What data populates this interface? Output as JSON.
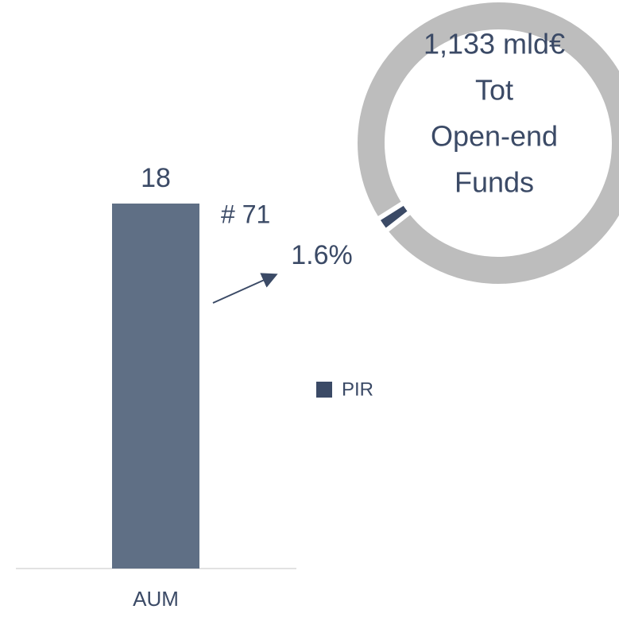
{
  "chart_data": [
    {
      "type": "bar",
      "categories": [
        "AUM"
      ],
      "series": [
        {
          "name": "PIR",
          "color": "#5f6f85",
          "legend_color": "#3b4a66",
          "values": [
            18
          ]
        }
      ],
      "annotations": [
        "# 71"
      ]
    },
    {
      "type": "pie",
      "values": [
        1.6,
        98.4
      ],
      "value_labels": [
        "1.6%",
        null
      ],
      "colors": [
        "#3b4a66",
        "#bdbdbd"
      ],
      "center_text": [
        "1,133 mld€",
        "Tot",
        "Open-end",
        "Funds"
      ]
    }
  ]
}
